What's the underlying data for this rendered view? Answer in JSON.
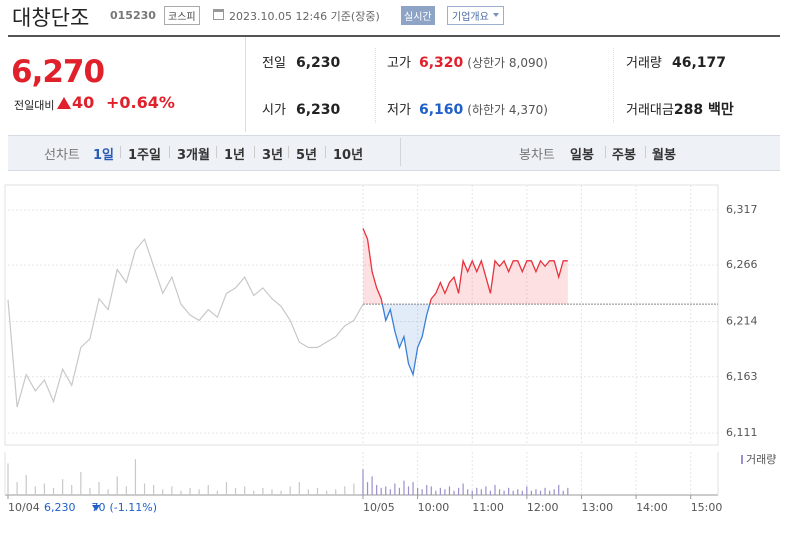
{
  "header": {
    "name": "대창단조",
    "code": "015230",
    "market": "코스피",
    "timestamp": "2023.10.05 12:46 기준(장중)",
    "realtime": "실시간",
    "company": "기업개요"
  },
  "quote": {
    "price": "6,270",
    "change_label": "전일대비",
    "change": "40",
    "percent": "+0.64%",
    "color": "#e0202b"
  },
  "stats": [
    {
      "label": "전일",
      "value": "6,230"
    },
    {
      "label": "고가",
      "value": "6,320",
      "note": "(상한가 8,090)",
      "color": "#e0202b"
    },
    {
      "label": "거래량",
      "value": "46,177"
    },
    {
      "label": "시가",
      "value": "6,230"
    },
    {
      "label": "저가",
      "value": "6,160",
      "note": "(하한가 4,370)",
      "color": "#1e5fc8"
    },
    {
      "label": "거래대금",
      "value": "288 백만"
    }
  ],
  "tabs": {
    "line_label": "선차트",
    "line_items": [
      "1일",
      "1주일",
      "3개월",
      "1년",
      "3년",
      "5년",
      "10년"
    ],
    "active": 0,
    "candle_label": "봉차트",
    "candle_items": [
      "일봉",
      "주봉",
      "월봉"
    ]
  },
  "chart_data": {
    "type": "line",
    "ylim": [
      6100,
      6340
    ],
    "yticks": [
      {
        "value": 6317,
        "label": "6,317"
      },
      {
        "value": 6266,
        "label": "6,266"
      },
      {
        "value": 6214,
        "label": "6,214"
      },
      {
        "value": 6163,
        "label": "6,163"
      },
      {
        "value": 6111,
        "label": "6,111"
      }
    ],
    "xlim": [
      0,
      780
    ],
    "xticks": [
      {
        "value": 0,
        "label": "10/04"
      },
      {
        "value": 390,
        "label": "10/05"
      },
      {
        "value": 450,
        "label": "10:00"
      },
      {
        "value": 510,
        "label": "11:00"
      },
      {
        "value": 570,
        "label": "12:00"
      },
      {
        "value": 630,
        "label": "13:00"
      },
      {
        "value": 690,
        "label": "14:00"
      },
      {
        "value": 750,
        "label": "15:00"
      }
    ],
    "grid": true,
    "baseline": 6230,
    "volume_label": "거래량",
    "volume_ylim": [
      0,
      3000
    ],
    "footer": {
      "price": "6,230",
      "change": "70",
      "percent": "(-1.11%)",
      "color": "#1e5fc8"
    },
    "series": [
      {
        "color": "#c8c8c8",
        "volume_color": "#c8c8c8",
        "x": [
          0,
          10,
          20,
          30,
          40,
          50,
          60,
          70,
          80,
          90,
          100,
          110,
          120,
          130,
          140,
          150,
          160,
          170,
          180,
          190,
          200,
          210,
          220,
          230,
          240,
          250,
          260,
          270,
          280,
          290,
          300,
          310,
          320,
          330,
          340,
          350,
          360,
          370,
          380,
          390
        ],
        "values": [
          6234,
          6135,
          6165,
          6150,
          6160,
          6140,
          6170,
          6155,
          6190,
          6198,
          6235,
          6225,
          6262,
          6250,
          6280,
          6290,
          6265,
          6240,
          6255,
          6230,
          6220,
          6215,
          6225,
          6218,
          6240,
          6245,
          6255,
          6238,
          6245,
          6235,
          6228,
          6215,
          6195,
          6190,
          6190,
          6195,
          6200,
          6210,
          6215,
          6230
        ],
        "volume": [
          2200,
          900,
          1400,
          600,
          800,
          500,
          1100,
          700,
          1600,
          500,
          900,
          400,
          1300,
          600,
          2500,
          800,
          700,
          400,
          600,
          300,
          500,
          400,
          700,
          300,
          900,
          500,
          600,
          300,
          500,
          400,
          300,
          600,
          900,
          400,
          500,
          300,
          400,
          600,
          800,
          1200
        ]
      },
      {
        "up_color": "#e8323c",
        "down_color": "#3a7fd5",
        "volume_color": "#9c8fcc",
        "x": [
          390,
          395,
          400,
          405,
          410,
          415,
          420,
          425,
          430,
          435,
          440,
          445,
          450,
          455,
          460,
          465,
          470,
          475,
          480,
          485,
          490,
          495,
          500,
          505,
          510,
          515,
          520,
          525,
          530,
          535,
          540,
          545,
          550,
          555,
          560,
          565,
          570,
          575,
          580,
          585,
          590,
          595,
          600,
          605,
          610,
          615
        ],
        "values": [
          6300,
          6290,
          6260,
          6245,
          6235,
          6215,
          6225,
          6205,
          6190,
          6200,
          6175,
          6165,
          6190,
          6200,
          6220,
          6235,
          6240,
          6250,
          6240,
          6250,
          6255,
          6240,
          6270,
          6260,
          6270,
          6260,
          6270,
          6255,
          6240,
          6270,
          6265,
          6270,
          6260,
          6270,
          6270,
          6260,
          6270,
          6270,
          6260,
          6270,
          6265,
          6270,
          6270,
          6255,
          6270,
          6270
        ],
        "volume": [
          1800,
          900,
          1300,
          700,
          500,
          600,
          400,
          800,
          500,
          1000,
          600,
          900,
          500,
          400,
          700,
          600,
          300,
          500,
          400,
          600,
          300,
          500,
          800,
          400,
          300,
          500,
          400,
          600,
          300,
          700,
          400,
          300,
          500,
          300,
          400,
          300,
          600,
          300,
          400,
          300,
          500,
          300,
          400,
          700,
          300,
          500
        ]
      }
    ]
  }
}
